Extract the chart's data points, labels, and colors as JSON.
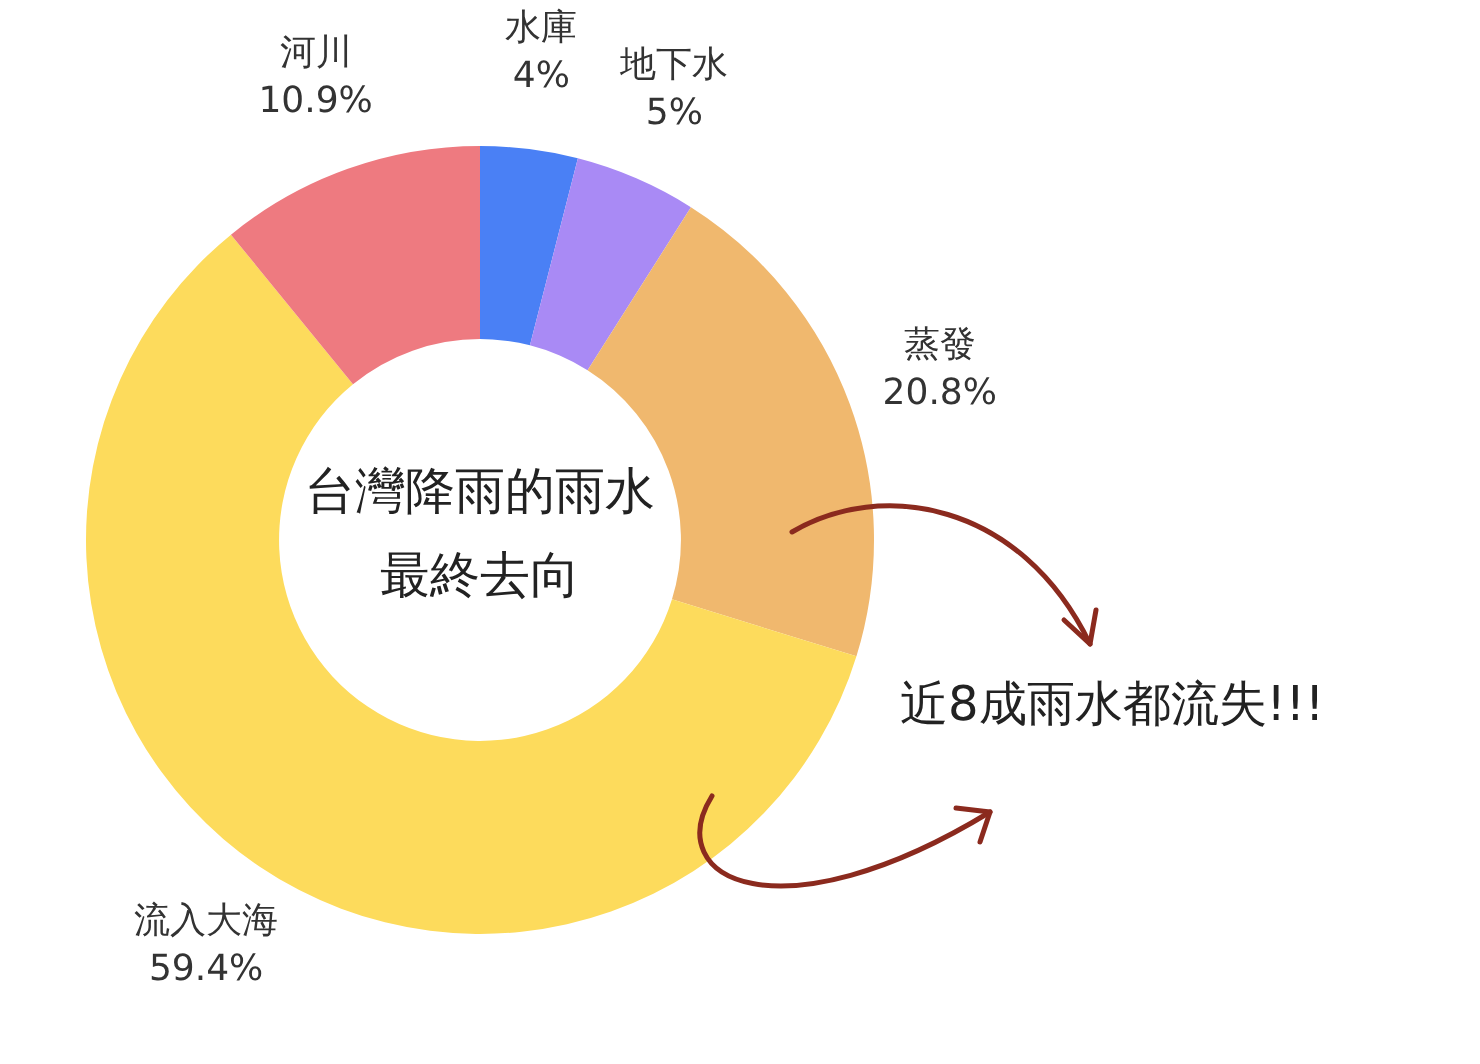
{
  "chart_data": {
    "type": "donut",
    "title": "台灣降雨的雨水最終去向",
    "categories": [
      "水庫",
      "地下水",
      "蒸發",
      "流入大海",
      "河川"
    ],
    "values": [
      4,
      5,
      20.8,
      59.4,
      10.9
    ],
    "value_labels": [
      "4%",
      "5%",
      "20.8%",
      "59.4%",
      "10.9%"
    ],
    "colors": [
      "#4a80f5",
      "#a98af5",
      "#f0b86e",
      "#fddb5c",
      "#ee7a80"
    ],
    "legend": false,
    "annotations": [
      "近8成雨水都流失!!!"
    ]
  }
}
